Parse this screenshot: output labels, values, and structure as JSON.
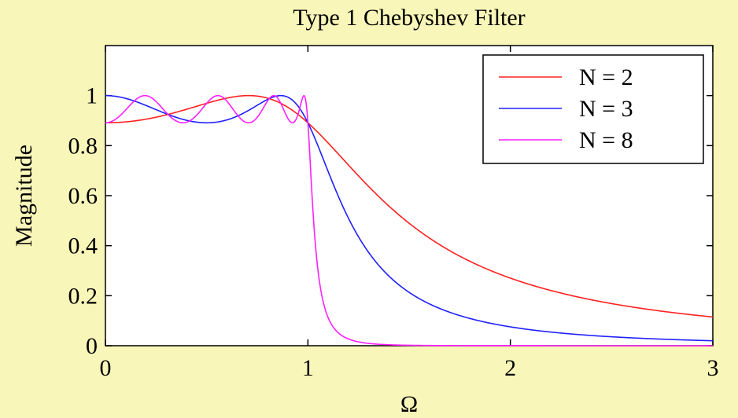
{
  "chart_data": {
    "type": "line",
    "title": "Type 1 Chebyshev Filter",
    "xlabel": "Ω",
    "ylabel": "Magnitude",
    "xlim": [
      0,
      3
    ],
    "ylim": [
      0,
      1.2
    ],
    "xticks": [
      0,
      1,
      2,
      3
    ],
    "xtick_labels": [
      "0",
      "1",
      "2",
      "3"
    ],
    "yticks": [
      0,
      0.2,
      0.4,
      0.6,
      0.8,
      1
    ],
    "ytick_labels": [
      "0",
      "0.2",
      "0.4",
      "0.6",
      "0.8",
      "1"
    ],
    "grid": false,
    "legend_position": "top-right",
    "ripple_db": 1,
    "series": [
      {
        "name": "N = 2",
        "order": 2,
        "color": "#ff2020"
      },
      {
        "name": "N = 3",
        "order": 3,
        "color": "#2020ff"
      },
      {
        "name": "N = 8",
        "order": 8,
        "color": "#ff20ff"
      }
    ]
  }
}
